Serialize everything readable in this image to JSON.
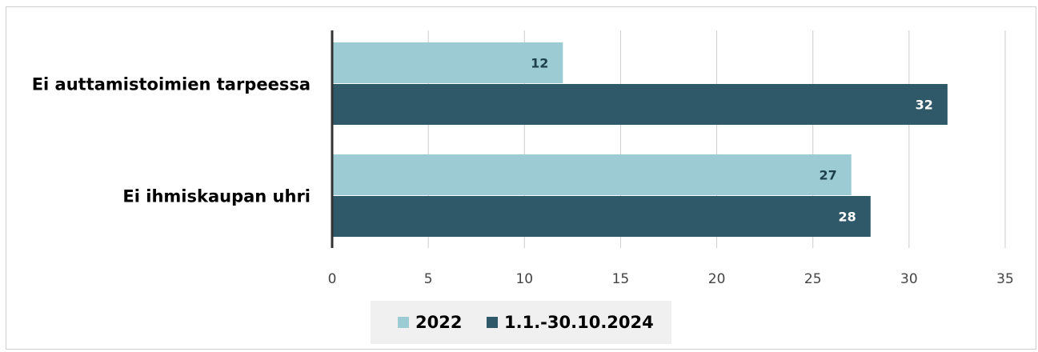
{
  "chart_data": {
    "type": "bar",
    "orientation": "horizontal",
    "categories": [
      "Ei auttamistoimien tarpeessa",
      "Ei ihmiskaupan uhri"
    ],
    "series": [
      {
        "name": "2022",
        "values": [
          12,
          27
        ],
        "color": "#9ccbd3"
      },
      {
        "name": "1.1.-30.10.2024",
        "values": [
          32,
          28
        ],
        "color": "#2f5868"
      }
    ],
    "xlim": [
      0,
      35
    ],
    "xticks": [
      0,
      5,
      10,
      15,
      20,
      25,
      30,
      35
    ],
    "grid": true,
    "legend_position": "bottom",
    "data_label_colors": [
      "#1e3f4d",
      "#ffffff"
    ]
  }
}
